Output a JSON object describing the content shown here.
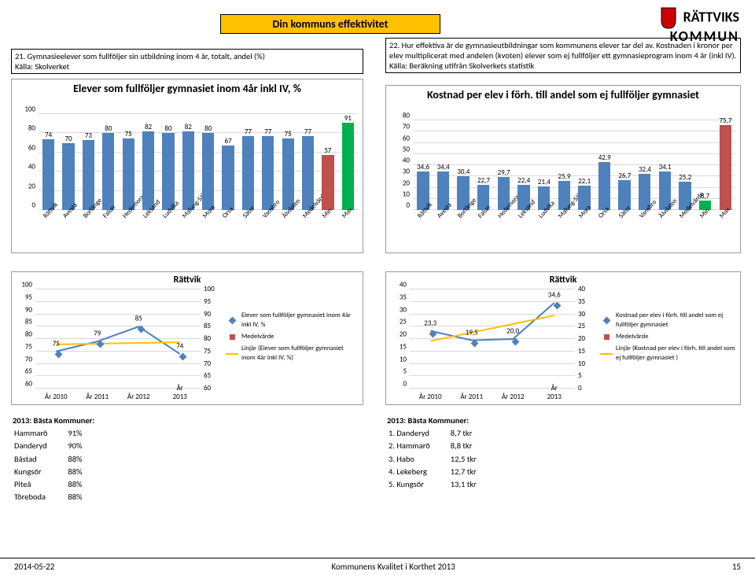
{
  "page": {
    "banner": "Din kommuns effektivitet",
    "logo_line1": "RÄTTVIKS",
    "logo_line2": "KOMMUN",
    "footer_date": "2014-05-22",
    "footer_title": "Kommunens Kvalitet i Korthet 2013",
    "footer_page": "15"
  },
  "colors": {
    "banner_bg": "#ffc000",
    "blue": "#4f81bd",
    "red": "#c0504d",
    "green": "#00b050",
    "orange": "#ed7d31",
    "trend": "#ffc000",
    "grid": "#d9d9d9",
    "border": "#9a9a9a"
  },
  "top_left": {
    "question": "21. Gymnasieelever som fullföljer sin utbildning inom 4 år, totalt, andel (%)",
    "source": "Källa: Skolverket",
    "chart_title": "Elever som fullföljer gymnasiet inom 4år inkl IV, %",
    "ymin": 0,
    "ymax": 100,
    "ystep": 20,
    "categories": [
      "Rättvik",
      "Avesta",
      "Borlänge",
      "Falun",
      "Hedemora",
      "Leksand",
      "Ludvika",
      "Malung-Sälen",
      "Mora",
      "Orsa",
      "Säter",
      "Vansbro",
      "Älvdalen",
      "Medelvärde",
      "Min",
      "Max"
    ],
    "values": [
      74,
      70,
      73,
      80,
      75,
      82,
      80,
      82,
      80,
      67,
      77,
      77,
      75,
      77,
      57,
      91
    ],
    "bar_colors": [
      "#4f81bd",
      "#4f81bd",
      "#4f81bd",
      "#4f81bd",
      "#4f81bd",
      "#4f81bd",
      "#4f81bd",
      "#4f81bd",
      "#4f81bd",
      "#4f81bd",
      "#4f81bd",
      "#4f81bd",
      "#4f81bd",
      "#4f81bd",
      "#c0504d",
      "#00b050"
    ]
  },
  "top_right": {
    "question": "22. Hur effektiva är de gymnasieutbildningar som kommunens elever tar del av. Kostnaden i kronor per elev multiplicerat med andelen (kvoten) elever som ej fullföljer ett gymnasieprogram inom 4 år (inkl IV).",
    "source": "Källa: Beräkning utifrån Skolverkets statistik",
    "chart_title": "Kostnad per elev i förh. till andel som ej fullföljer gymnasiet",
    "ymin": 0,
    "ymax": 80,
    "ystep": 10,
    "categories": [
      "Rättvik",
      "Avesta",
      "Borlänge",
      "Falun",
      "Hedemora",
      "Leksand",
      "Ludvika",
      "Malung-Sälen",
      "Mora",
      "Orsa",
      "Säter",
      "Vansbro",
      "Älvdalen",
      "Medelvärde",
      "Min",
      "Max"
    ],
    "values": [
      34.6,
      34.4,
      30.4,
      22.7,
      29.7,
      22.4,
      21.4,
      25.9,
      22.1,
      42.9,
      26.7,
      32.4,
      34.1,
      25.2,
      8.7,
      75.7
    ],
    "labels": [
      "34,6",
      "34,4",
      "30,4",
      "22,7",
      "29,7",
      "22,4",
      "21,4",
      "25,9",
      "22,1",
      "42,9",
      "26,7",
      "32,4",
      "34,1",
      "25,2",
      "8,7",
      "75,7"
    ],
    "bar_colors": [
      "#4f81bd",
      "#4f81bd",
      "#4f81bd",
      "#4f81bd",
      "#4f81bd",
      "#4f81bd",
      "#4f81bd",
      "#4f81bd",
      "#4f81bd",
      "#4f81bd",
      "#4f81bd",
      "#4f81bd",
      "#4f81bd",
      "#4f81bd",
      "#00b050",
      "#c0504d"
    ]
  },
  "bottom_left": {
    "title": "Rättvik",
    "primary_ymin": 60,
    "primary_ymax": 100,
    "primary_step": 5,
    "secondary_ymin": 60,
    "secondary_ymax": 100,
    "secondary_step": 5,
    "years": [
      "År 2010",
      "År 2011",
      "År 2012",
      "År 2013"
    ],
    "series_main": {
      "name": "Elever som fullföljer gymnasiet inom 4år inkl IV, %",
      "color": "#4f81bd",
      "marker": "diamond",
      "values": [
        75,
        79,
        85,
        74
      ]
    },
    "series_avg": {
      "name": "Medelvärde",
      "color": "#c0504d",
      "marker": "square",
      "values": [
        null,
        null,
        null,
        null
      ]
    },
    "series_trend": {
      "name": "Linjär (Elever som fullföljer gymnasiet inom 4år inkl IV, %)",
      "color": "#ffc000"
    }
  },
  "bottom_right": {
    "title": "Rättvik",
    "primary_ymin": 0,
    "primary_ymax": 40,
    "primary_step": 5,
    "secondary_ymin": 0,
    "secondary_ymax": 40,
    "secondary_step": 5,
    "years": [
      "År 2010",
      "År 2011",
      "År 2012",
      "År 2013"
    ],
    "series_main": {
      "name": "Kostnad per elev i förh. till andel som ej fullföljer gymnasiet",
      "color": "#4f81bd",
      "marker": "diamond",
      "values": [
        23.3,
        19.5,
        20.0,
        34.6
      ],
      "labels": [
        "23,3",
        "19,5",
        "20,0",
        "34,6"
      ]
    },
    "series_avg": {
      "name": "Medelvärde",
      "color": "#c0504d",
      "marker": "square",
      "values": [
        null,
        null,
        null,
        null
      ]
    },
    "series_trend": {
      "name": "Linjär (Kostnad per elev i förh. till andel som ej fullföljer gymnasiet )",
      "color": "#ffc000"
    }
  },
  "best_left": {
    "heading": "2013: Bästa Kommuner:",
    "rows": [
      [
        "Hammarö",
        "91%"
      ],
      [
        "Danderyd",
        "90%"
      ],
      [
        "Båstad",
        "88%"
      ],
      [
        "Kungsör",
        "88%"
      ],
      [
        "Piteå",
        "88%"
      ],
      [
        "Töreboda",
        "88%"
      ]
    ]
  },
  "best_right": {
    "heading": "2013: Bästa Kommuner:",
    "rows": [
      [
        "1. Danderyd",
        "8,7 tkr"
      ],
      [
        "2. Hammarö",
        "8,8 tkr"
      ],
      [
        "3. Habo",
        "12,5 tkr"
      ],
      [
        "4. Lekeberg",
        "12,7 tkr"
      ],
      [
        "5. Kungsör",
        "13,1 tkr"
      ]
    ]
  }
}
